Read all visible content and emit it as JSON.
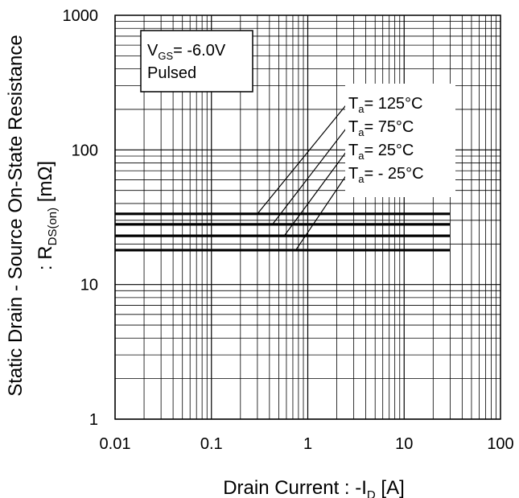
{
  "chart_data": {
    "type": "line",
    "x_scale": "log",
    "y_scale": "log",
    "xlim": [
      0.01,
      100
    ],
    "ylim": [
      1,
      1000
    ],
    "grid": true,
    "xlabel": {
      "text": "Drain Current : -I",
      "sub": "D",
      "unit": " [A]"
    },
    "ylabel": {
      "line1": "Static Drain - Source On-State Resistance",
      "line2_prefix": ": R",
      "line2_sub": "DS(on)",
      "line2_unit": " [mΩ]"
    },
    "x_ticks": [
      {
        "value": 0.01,
        "label": "0.01"
      },
      {
        "value": 0.1,
        "label": "0.1"
      },
      {
        "value": 1,
        "label": "1"
      },
      {
        "value": 10,
        "label": "10"
      },
      {
        "value": 100,
        "label": "100"
      }
    ],
    "y_ticks": [
      {
        "value": 1,
        "label": "1"
      },
      {
        "value": 10,
        "label": "10"
      },
      {
        "value": 100,
        "label": "100"
      },
      {
        "value": 1000,
        "label": "1000"
      }
    ],
    "conditions": {
      "vgs_prefix": "V",
      "vgs_sub": "GS",
      "vgs_value": "= -6.0V",
      "pulse": "Pulsed"
    },
    "series": [
      {
        "name": "Ta= 125°C",
        "label_prefix": "T",
        "label_sub": "a",
        "label_value": "= 125°C",
        "x": [
          0.01,
          30
        ],
        "y": [
          33.5,
          33.5
        ],
        "leader_start": [
          0.3,
          33.5
        ]
      },
      {
        "name": "Ta= 75°C",
        "label_prefix": "T",
        "label_sub": "a",
        "label_value": "= 75°C",
        "x": [
          0.01,
          30
        ],
        "y": [
          28,
          28
        ],
        "leader_start": [
          0.43,
          28
        ]
      },
      {
        "name": "Ta= 25°C",
        "label_prefix": "T",
        "label_sub": "a",
        "label_value": "= 25°C",
        "x": [
          0.01,
          30
        ],
        "y": [
          23,
          23
        ],
        "leader_start": [
          0.57,
          23
        ]
      },
      {
        "name": "Ta= - 25°C",
        "label_prefix": "T",
        "label_sub": "a",
        "label_value": "= - 25°C",
        "x": [
          0.01,
          30
        ],
        "y": [
          18,
          18
        ],
        "leader_start": [
          0.75,
          18
        ]
      }
    ],
    "line_color": "#000000"
  }
}
